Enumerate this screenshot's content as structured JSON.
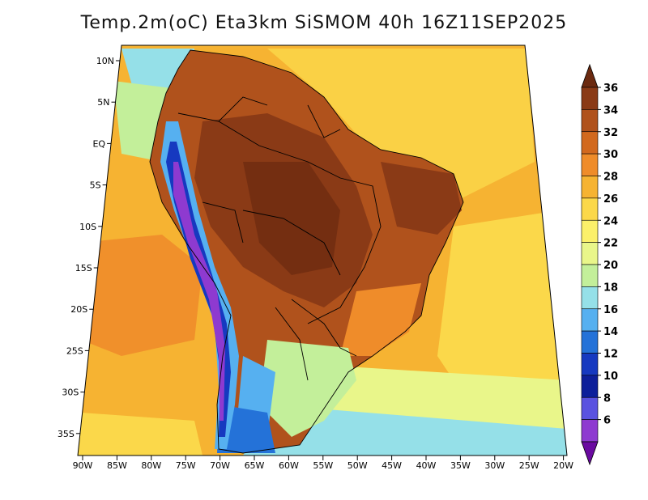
{
  "title": "Temp.2m(oC) Eta3km SiSMOM 40h 16Z11SEP2025",
  "lat_labels": [
    "10N",
    "5N",
    "EQ",
    "5S",
    "10S",
    "15S",
    "20S",
    "25S",
    "30S",
    "35S"
  ],
  "lon_labels": [
    "90W",
    "85W",
    "80W",
    "75W",
    "70W",
    "65W",
    "60W",
    "55W",
    "50W",
    "45W",
    "40W",
    "35W",
    "30W",
    "25W",
    "20W"
  ],
  "colorbar": {
    "labels": [
      "36",
      "34",
      "32",
      "30",
      "28",
      "26",
      "24",
      "22",
      "20",
      "18",
      "16",
      "14",
      "12",
      "10",
      "8",
      "6"
    ],
    "colors": [
      "#6b2a10",
      "#8a3a16",
      "#b0521c",
      "#d2691e",
      "#ef8c2a",
      "#f6b332",
      "#fbd84a",
      "#fbf06a",
      "#e9f68a",
      "#c3ef9a",
      "#95e0e8",
      "#56b0f0",
      "#2472d8",
      "#1639c0",
      "#0d1f9a",
      "#5a52e0",
      "#8e3ad0",
      "#6a0aa0"
    ]
  }
}
